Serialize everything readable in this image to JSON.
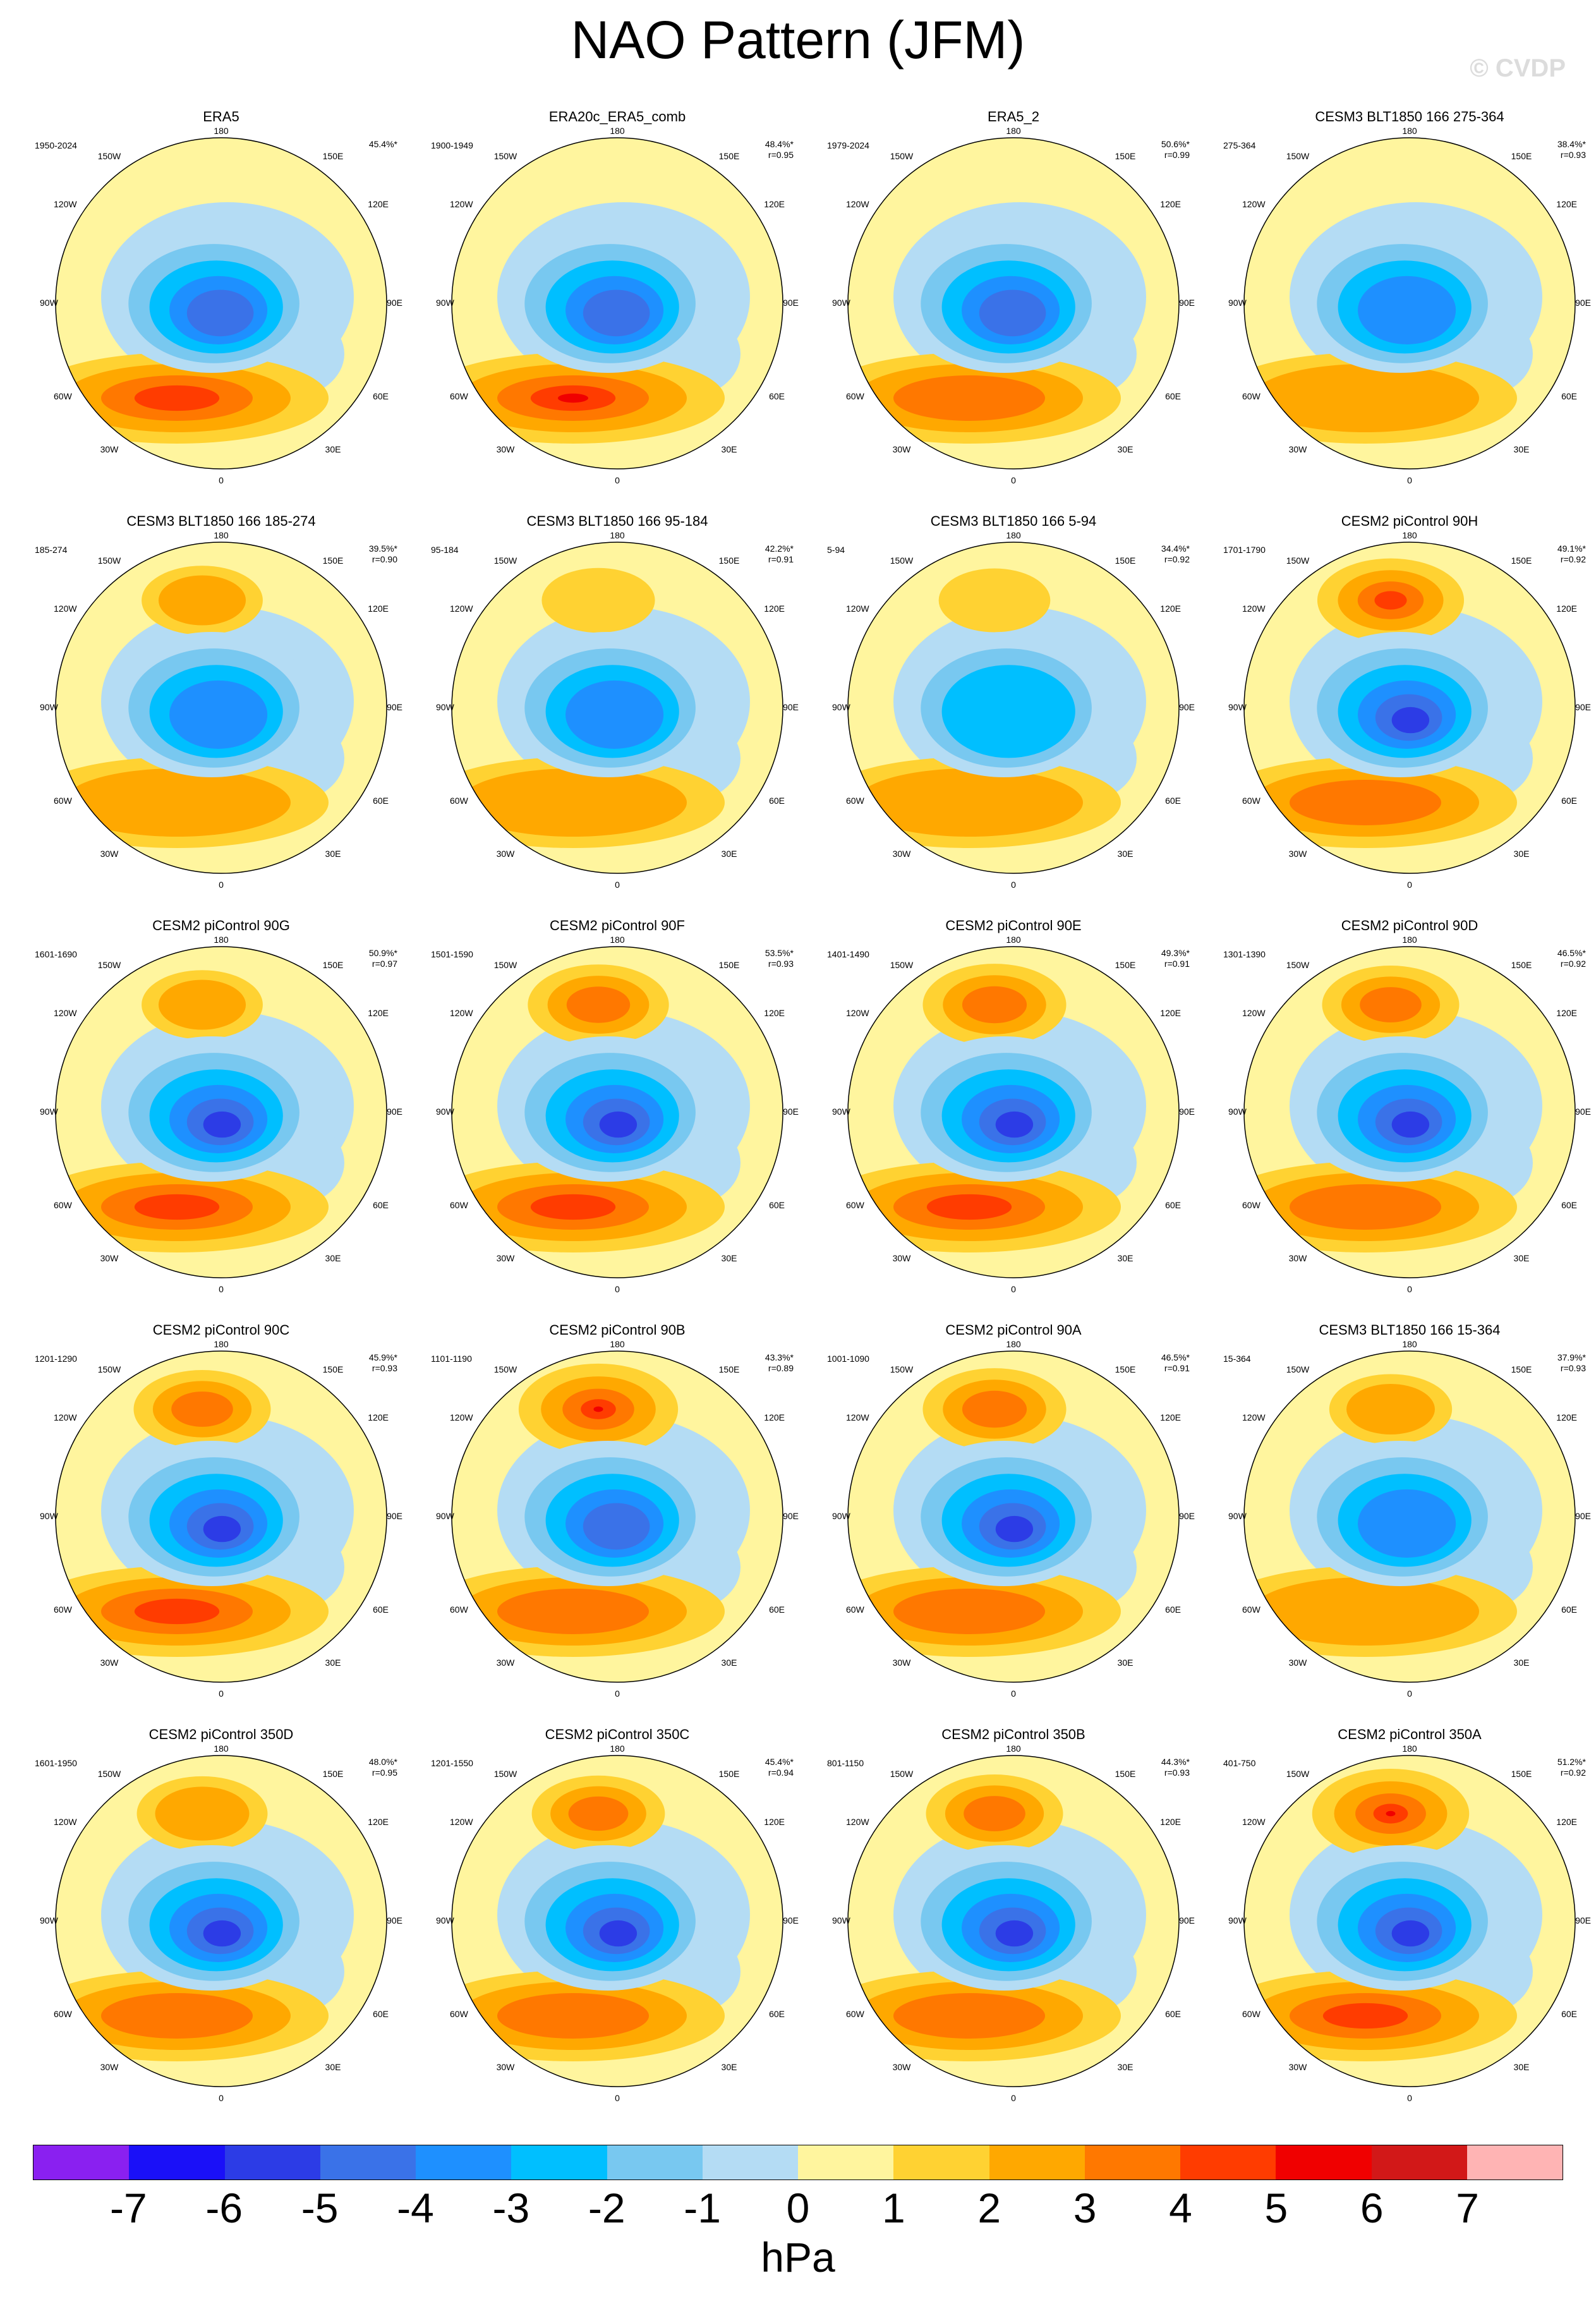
{
  "title": "NAO Pattern (JFM)",
  "watermark": "© CVDP",
  "colorbar": {
    "colors": [
      "#8a20f0",
      "#1a10f8",
      "#2c3ce6",
      "#3a72e8",
      "#1e90ff",
      "#00bfff",
      "#78c8f0",
      "#b4dcf4",
      "#fff59e",
      "#ffd232",
      "#ffa800",
      "#ff7800",
      "#ff3c00",
      "#f00000",
      "#d21818",
      "#ffb4b4"
    ],
    "ticks": [
      "-7",
      "-6",
      "-5",
      "-4",
      "-3",
      "-2",
      "-1",
      "0",
      "1",
      "2",
      "3",
      "4",
      "5",
      "6",
      "7"
    ],
    "unit": "hPa"
  },
  "lon_labels": {
    "top": "180",
    "bottom": "0",
    "left": "90W",
    "right": "90E",
    "ul1": "150W",
    "ul2": "120W",
    "ur1": "150E",
    "ur2": "120E",
    "ll1": "60W",
    "ll2": "30W",
    "lr1": "60E",
    "lr2": "30E"
  },
  "panels": [
    {
      "title": "ERA5",
      "years": "1950-2024",
      "pct": "45.4%*",
      "r": "",
      "low": 0.74,
      "pac": 0.0,
      "atl": 0.62
    },
    {
      "title": "ERA20c_ERA5_comb",
      "years": "1900-1949",
      "pct": "48.4%*",
      "r": "r=0.95",
      "low": 0.76,
      "pac": 0.0,
      "atl": 0.78
    },
    {
      "title": "ERA5_2",
      "years": "1979-2024",
      "pct": "50.6%*",
      "r": "r=0.99",
      "low": 0.8,
      "pac": 0.0,
      "atl": 0.58
    },
    {
      "title": "CESM3 BLT1850 166 275-364",
      "years": "275-364",
      "pct": "38.4%*",
      "r": "r=0.93",
      "low": 0.68,
      "pac": 0.0,
      "atl": 0.45
    },
    {
      "title": "CESM3 BLT1850 166 185-274",
      "years": "185-274",
      "pct": "39.5%*",
      "r": "r=0.90",
      "low": 0.68,
      "pac": 0.3,
      "atl": 0.45
    },
    {
      "title": "CESM3 BLT1850 166 95-184",
      "years": "95-184",
      "pct": "42.2%*",
      "r": "r=0.91",
      "low": 0.62,
      "pac": 0.2,
      "atl": 0.42
    },
    {
      "title": "CESM3 BLT1850 166 5-94",
      "years": "5-94",
      "pct": "34.4%*",
      "r": "r=0.92",
      "low": 0.6,
      "pac": 0.18,
      "atl": 0.42
    },
    {
      "title": "CESM2 piControl 90H",
      "years": "1701-1790",
      "pct": "49.1%*",
      "r": "r=0.92",
      "low": 0.86,
      "pac": 0.62,
      "atl": 0.58
    },
    {
      "title": "CESM2 piControl 90G",
      "years": "1601-1690",
      "pct": "50.9%*",
      "r": "r=0.97",
      "low": 0.9,
      "pac": 0.3,
      "atl": 0.66
    },
    {
      "title": "CESM2 piControl 90F",
      "years": "1501-1590",
      "pct": "53.5%*",
      "r": "r=0.93",
      "low": 0.9,
      "pac": 0.55,
      "atl": 0.62
    },
    {
      "title": "CESM2 piControl 90E",
      "years": "1401-1490",
      "pct": "49.3%*",
      "r": "r=0.91",
      "low": 0.88,
      "pac": 0.58,
      "atl": 0.62
    },
    {
      "title": "CESM2 piControl 90D",
      "years": "1301-1390",
      "pct": "46.5%*",
      "r": "r=0.92",
      "low": 0.86,
      "pac": 0.5,
      "atl": 0.58
    },
    {
      "title": "CESM2 piControl 90C",
      "years": "1201-1290",
      "pct": "45.9%*",
      "r": "r=0.93",
      "low": 0.86,
      "pac": 0.5,
      "atl": 0.62
    },
    {
      "title": "CESM2 piControl 90B",
      "years": "1101-1190",
      "pct": "43.3%*",
      "r": "r=0.89",
      "low": 0.8,
      "pac": 0.78,
      "atl": 0.55
    },
    {
      "title": "CESM2 piControl 90A",
      "years": "1001-1090",
      "pct": "46.5%*",
      "r": "r=0.91",
      "low": 0.82,
      "pac": 0.58,
      "atl": 0.55
    },
    {
      "title": "CESM3 BLT1850 166 15-364",
      "years": "15-364",
      "pct": "37.9%*",
      "r": "r=0.93",
      "low": 0.62,
      "pac": 0.32,
      "atl": 0.45
    },
    {
      "title": "CESM2 piControl 350D",
      "years": "1601-1950",
      "pct": "48.0%*",
      "r": "r=0.95",
      "low": 0.86,
      "pac": 0.42,
      "atl": 0.58
    },
    {
      "title": "CESM2 piControl 350C",
      "years": "1201-1550",
      "pct": "45.4%*",
      "r": "r=0.94",
      "low": 0.84,
      "pac": 0.45,
      "atl": 0.58
    },
    {
      "title": "CESM2 piControl 350B",
      "years": "801-1150",
      "pct": "44.3%*",
      "r": "r=0.93",
      "low": 0.84,
      "pac": 0.5,
      "atl": 0.55
    },
    {
      "title": "CESM2 piControl 350A",
      "years": "401-750",
      "pct": "51.2%*",
      "r": "r=0.92",
      "low": 0.88,
      "pac": 0.75,
      "atl": 0.62
    }
  ]
}
